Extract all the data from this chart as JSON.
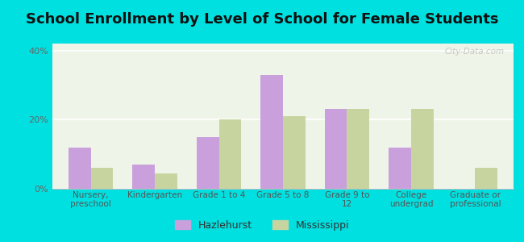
{
  "title": "School Enrollment by Level of School for Female Students",
  "categories": [
    "Nursery,\npreschool",
    "Kindergarten",
    "Grade 1 to 4",
    "Grade 5 to 8",
    "Grade 9 to\n12",
    "College\nundergrad",
    "Graduate or\nprofessional"
  ],
  "hazlehurst": [
    12,
    7,
    15,
    33,
    23,
    12,
    0
  ],
  "mississippi": [
    6,
    4.5,
    20,
    21,
    23,
    23,
    6
  ],
  "hazlehurst_color": "#c9a0dc",
  "mississippi_color": "#c8d4a0",
  "background_color": "#00e0e0",
  "plot_bg": "#eef5e8",
  "ylim": [
    0,
    42
  ],
  "yticks": [
    0,
    20,
    40
  ],
  "ytick_labels": [
    "0%",
    "20%",
    "40%"
  ],
  "bar_width": 0.35,
  "title_fontsize": 13,
  "legend_labels": [
    "Hazlehurst",
    "Mississippi"
  ],
  "watermark": "City-Data.com"
}
